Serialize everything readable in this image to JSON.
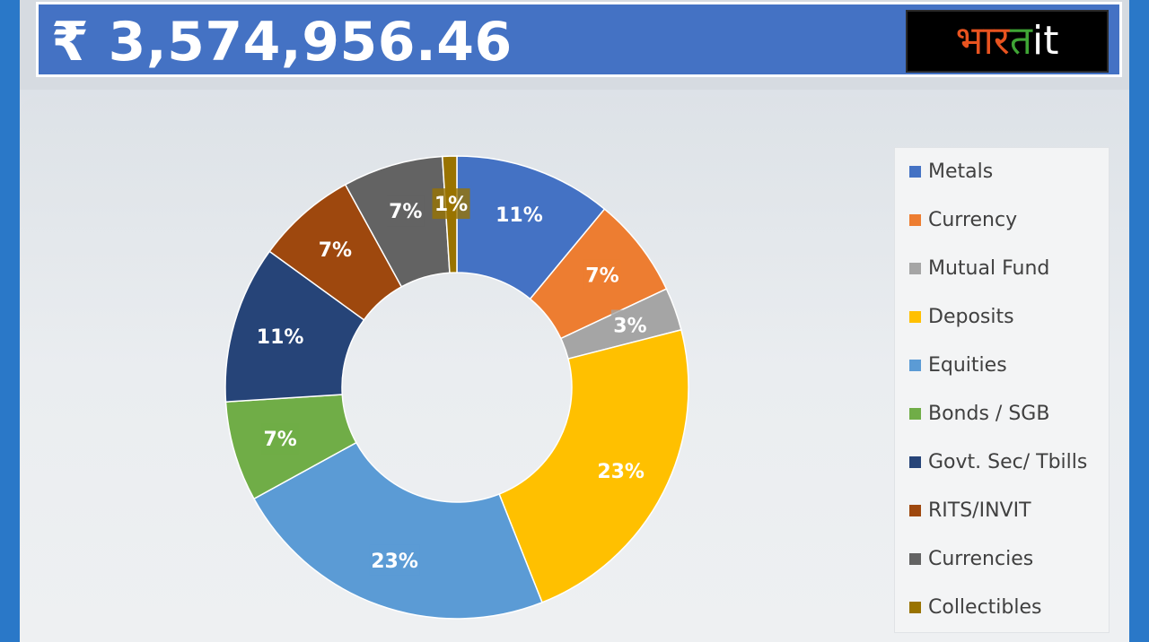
{
  "header": {
    "total_value": "₹ 3,574,956.46",
    "logo": {
      "part1": "भार",
      "part2": "त",
      "part3": "it"
    }
  },
  "chart_data": {
    "type": "pie",
    "donut": true,
    "title": "",
    "labels": [
      "Metals",
      "Currency",
      "Mutual Fund",
      "Deposits",
      "Equities",
      "Bonds / SGB",
      "Govt. Sec/ Tbills",
      "RITS/INVIT",
      "Currencies",
      "Collectibles"
    ],
    "values": [
      11,
      7,
      3,
      23,
      23,
      7,
      11,
      7,
      7,
      1
    ],
    "value_labels": [
      "11%",
      "7%",
      "3%",
      "23%",
      "23%",
      "7%",
      "11%",
      "7%",
      "7%",
      "1%"
    ],
    "colors": [
      "#4472c4",
      "#ed7d31",
      "#a5a5a5",
      "#ffc000",
      "#5b9bd5",
      "#70ad47",
      "#264478",
      "#9e480e",
      "#636363",
      "#997300"
    ],
    "label_colors": [
      "#4472c4",
      "#ed7d31",
      "#a5a5a5",
      "#ffc000",
      "#5b9bd5",
      "#70ad47",
      "#264478",
      "#9e480e",
      "#636363",
      "#997300"
    ],
    "legend_position": "right"
  }
}
